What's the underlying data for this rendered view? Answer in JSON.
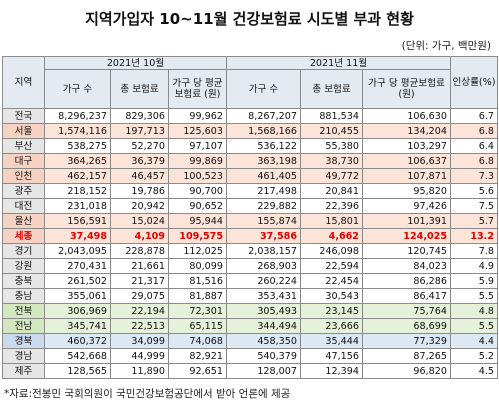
{
  "title": "지역가입자 10~11월 건강보험료 시도별 부과 현황",
  "unit": "(단위: 가구, 백만원)",
  "table": {
    "header_top": [
      "지역",
      "2021년 10월",
      "2021년 11월",
      "인상률(%)"
    ],
    "header_sub": [
      "가구 수",
      "총 보험료",
      "가구 당 평균보험료 (원)",
      "가구 수",
      "총 보험료",
      "가구 당 평균보험료 (원)"
    ],
    "rows": [
      [
        "전국",
        "8,296,237",
        "829,306",
        "99,962",
        "8,267,207",
        "881,534",
        "106,630",
        "6.7"
      ],
      [
        "서울",
        "1,574,116",
        "197,713",
        "125,603",
        "1,568,166",
        "210,455",
        "134,204",
        "6.8"
      ],
      [
        "부산",
        "538,275",
        "52,270",
        "97,107",
        "536,122",
        "55,380",
        "103,297",
        "6.4"
      ],
      [
        "대구",
        "364,265",
        "36,379",
        "99,869",
        "363,198",
        "38,730",
        "106,637",
        "6.8"
      ],
      [
        "인천",
        "462,157",
        "46,457",
        "100,523",
        "461,405",
        "49,772",
        "107,871",
        "7.3"
      ],
      [
        "광주",
        "218,152",
        "19,786",
        "90,700",
        "217,498",
        "20,841",
        "95,820",
        "5.6"
      ],
      [
        "대전",
        "231,018",
        "20,942",
        "90,652",
        "229,882",
        "22,396",
        "97,426",
        "7.5"
      ],
      [
        "울산",
        "156,591",
        "15,024",
        "95,944",
        "155,874",
        "15,801",
        "101,391",
        "5.7"
      ],
      [
        "세종",
        "37,498",
        "4,109",
        "109,575",
        "37,586",
        "4,662",
        "124,025",
        "13.2"
      ],
      [
        "경기",
        "2,043,095",
        "228,878",
        "112,025",
        "2,038,157",
        "246,098",
        "120,745",
        "7.8"
      ],
      [
        "강원",
        "270,431",
        "21,661",
        "80,099",
        "268,903",
        "22,594",
        "84,023",
        "4.9"
      ],
      [
        "충북",
        "261,502",
        "21,317",
        "81,516",
        "260,224",
        "22,454",
        "86,286",
        "5.9"
      ],
      [
        "충남",
        "355,061",
        "29,075",
        "81,887",
        "353,431",
        "30,543",
        "86,417",
        "5.5"
      ],
      [
        "전북",
        "306,969",
        "22,194",
        "72,301",
        "305,493",
        "23,145",
        "75,764",
        "4.8"
      ],
      [
        "전남",
        "345,741",
        "22,513",
        "65,115",
        "344,494",
        "23,666",
        "68,699",
        "5.5"
      ],
      [
        "경북",
        "460,372",
        "34,099",
        "74,068",
        "458,350",
        "35,444",
        "77,329",
        "4.4"
      ],
      [
        "경남",
        "542,668",
        "44,999",
        "82,921",
        "540,379",
        "47,156",
        "87,265",
        "5.2"
      ],
      [
        "제주",
        "128,565",
        "11,890",
        "92,651",
        "128,007",
        "12,394",
        "96,820",
        "4.5"
      ]
    ]
  },
  "footnote": "*자료:전봉민 국회의원이 국민건강보험공단에서 받아 언론에 제공"
}
